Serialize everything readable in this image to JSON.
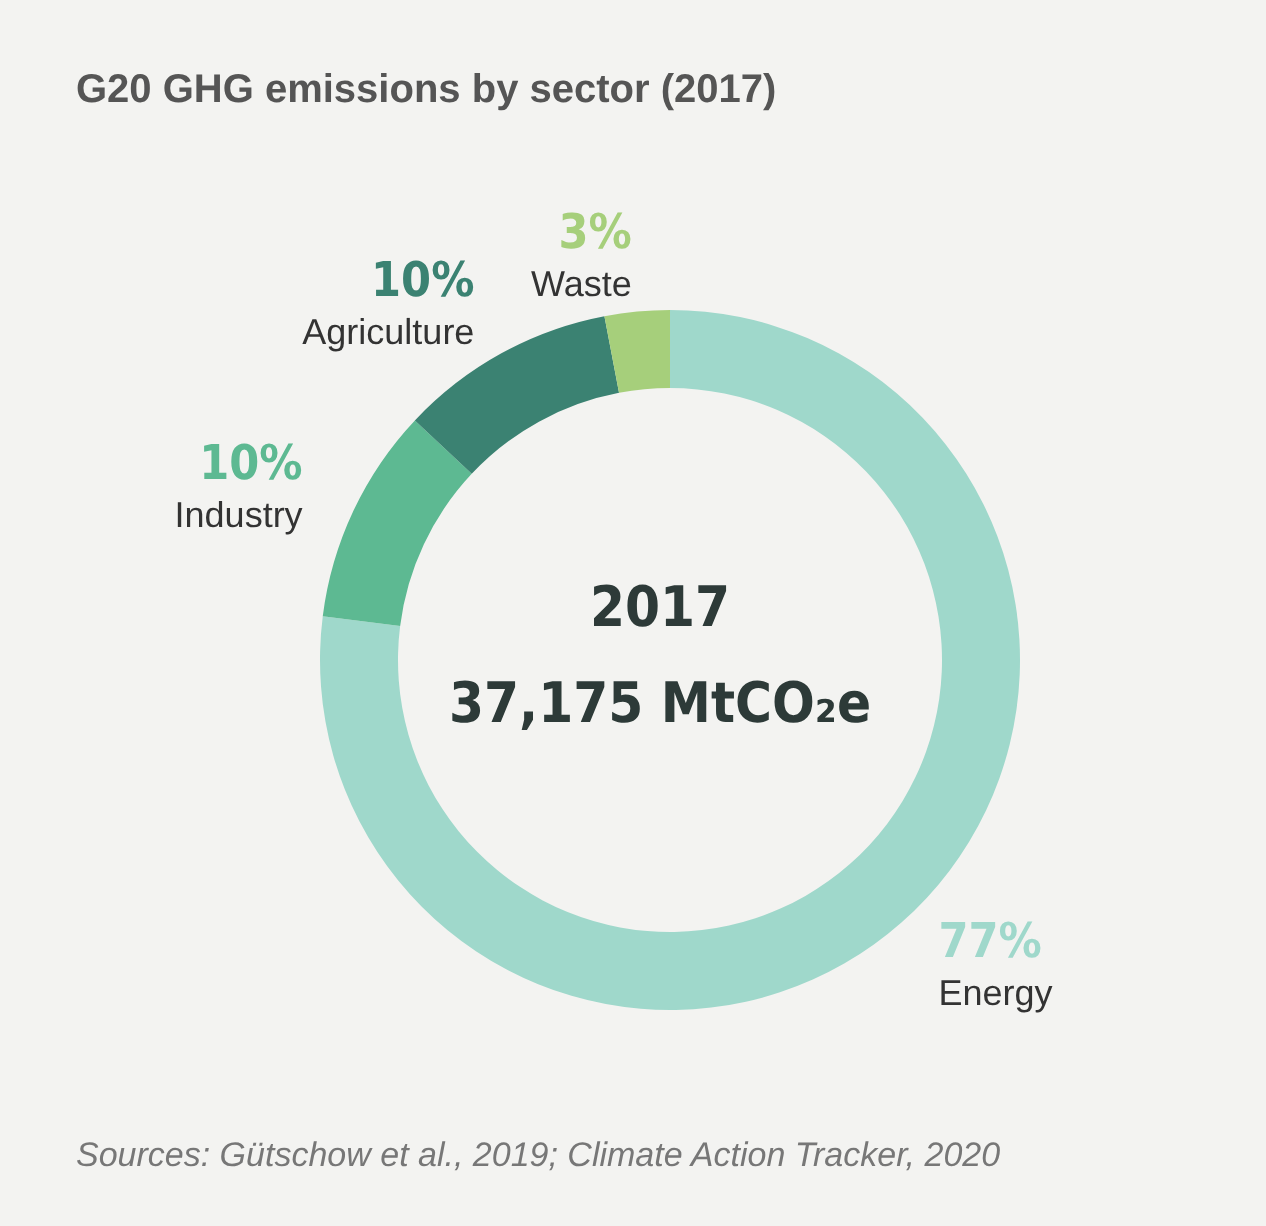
{
  "chart_data": {
    "type": "donut",
    "title": "G20 GHG emissions by sector (2017)",
    "categories": [
      "Energy",
      "Industry",
      "Agriculture",
      "Waste"
    ],
    "values": [
      77,
      10,
      10,
      3
    ],
    "colors": [
      "#9fd8cb",
      "#5db992",
      "#3b8272",
      "#a6cf7b"
    ],
    "value_labels": [
      "77%",
      "10%",
      "10%",
      "3%"
    ],
    "annotations": [
      "2017",
      "37,175 MtCO₂e",
      "Sources: Gütschow et al., 2019; Climate Action Tracker, 2020"
    ]
  }
}
